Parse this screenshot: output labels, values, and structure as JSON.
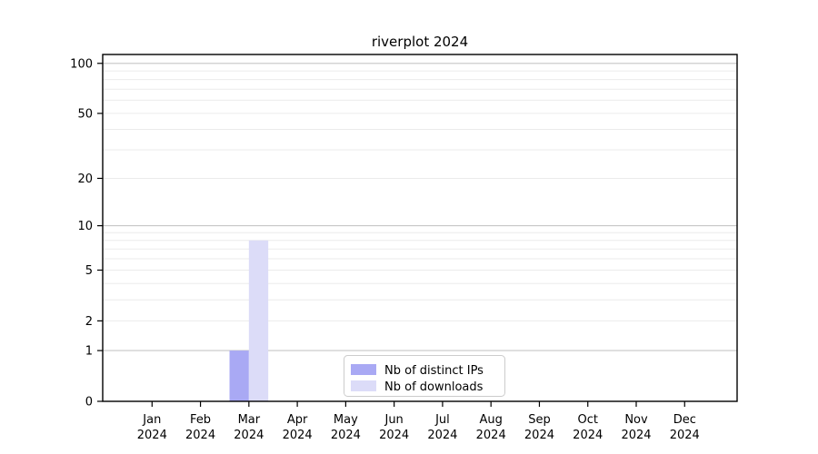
{
  "chart_data": {
    "type": "bar",
    "title": "riverplot 2024",
    "categories": [
      {
        "month": "Jan",
        "year": "2024"
      },
      {
        "month": "Feb",
        "year": "2024"
      },
      {
        "month": "Mar",
        "year": "2024"
      },
      {
        "month": "Apr",
        "year": "2024"
      },
      {
        "month": "May",
        "year": "2024"
      },
      {
        "month": "Jun",
        "year": "2024"
      },
      {
        "month": "Jul",
        "year": "2024"
      },
      {
        "month": "Aug",
        "year": "2024"
      },
      {
        "month": "Sep",
        "year": "2024"
      },
      {
        "month": "Oct",
        "year": "2024"
      },
      {
        "month": "Nov",
        "year": "2024"
      },
      {
        "month": "Dec",
        "year": "2024"
      }
    ],
    "series": [
      {
        "name": "Nb of distinct IPs",
        "values": [
          0,
          0,
          1,
          0,
          0,
          0,
          0,
          0,
          0,
          0,
          0,
          0
        ]
      },
      {
        "name": "Nb of downloads",
        "values": [
          0,
          0,
          8,
          0,
          0,
          0,
          0,
          0,
          0,
          0,
          0,
          0
        ]
      }
    ],
    "y_scale": "log1p",
    "ylim": [
      0,
      113
    ],
    "y_ticks": [
      0,
      1,
      2,
      5,
      10,
      20,
      50,
      100
    ],
    "y_major_gridlines": [
      1,
      10,
      100
    ],
    "y_minor_gridlines": [
      2,
      3,
      4,
      5,
      6,
      7,
      8,
      9,
      20,
      30,
      40,
      50,
      60,
      70,
      80,
      90
    ],
    "grid": true,
    "legend_position": "lower center",
    "xlabel": "",
    "ylabel": ""
  },
  "colors": {
    "distinct_ips_bar": "#a9a9f4",
    "downloads_bar": "#dcdcf8",
    "grid_major": "#c6c6c6",
    "grid_minor": "#ebebeb",
    "axis_line": "#000000",
    "legend_border": "#cccccc",
    "background": "#ffffff"
  }
}
